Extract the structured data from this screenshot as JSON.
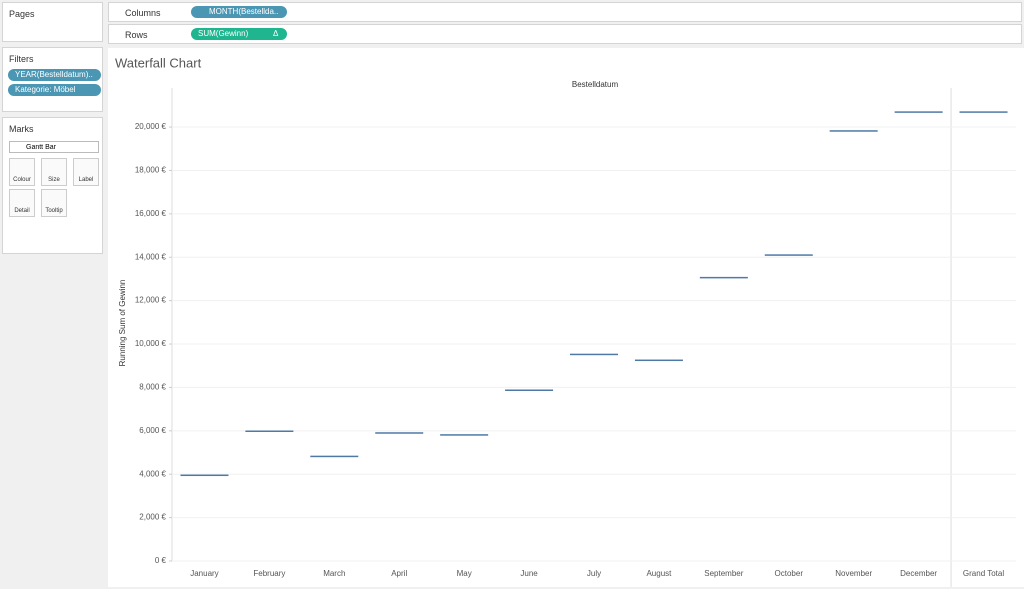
{
  "ui": {
    "pages": "Pages",
    "filters": "Filters",
    "filter_pills": [
      "YEAR(Bestelldatum)..",
      "Kategorie: Möbel"
    ],
    "marks": "Marks",
    "mark_type": "Gantt Bar",
    "mark_buttons": [
      "Colour",
      "Size",
      "Label",
      "Detail",
      "Tooltip"
    ],
    "columns": "Columns",
    "columns_pill": "MONTH(Bestellda..",
    "rows": "Rows",
    "rows_pill": "SUM(Gewinn)",
    "rows_pill_icon": "Δ"
  },
  "chart_data": {
    "type": "gantt",
    "title": "Waterfall Chart",
    "x_header": "Bestelldatum",
    "y_label": "Running Sum of Gewinn",
    "categories": [
      "January",
      "February",
      "March",
      "April",
      "May",
      "June",
      "July",
      "August",
      "September",
      "October",
      "November",
      "December",
      "Grand Total"
    ],
    "values": [
      3950,
      5980,
      4820,
      5900,
      5810,
      7870,
      9520,
      9250,
      13060,
      14100,
      19820,
      20690,
      20690
    ],
    "color": "#4e79a7",
    "grid": true,
    "ylim": [
      0,
      21800
    ],
    "yticks": [
      {
        "value": 0,
        "label": "0 €"
      },
      {
        "value": 2000,
        "label": "2,000 €"
      },
      {
        "value": 4000,
        "label": "4,000 €"
      },
      {
        "value": 6000,
        "label": "6,000 €"
      },
      {
        "value": 8000,
        "label": "8,000 €"
      },
      {
        "value": 10000,
        "label": "10,000 €"
      },
      {
        "value": 12000,
        "label": "12,000 €"
      },
      {
        "value": 14000,
        "label": "14,000 €"
      },
      {
        "value": 16000,
        "label": "16,000 €"
      },
      {
        "value": 18000,
        "label": "18,000 €"
      },
      {
        "value": 20000,
        "label": "20,000 €"
      }
    ]
  }
}
